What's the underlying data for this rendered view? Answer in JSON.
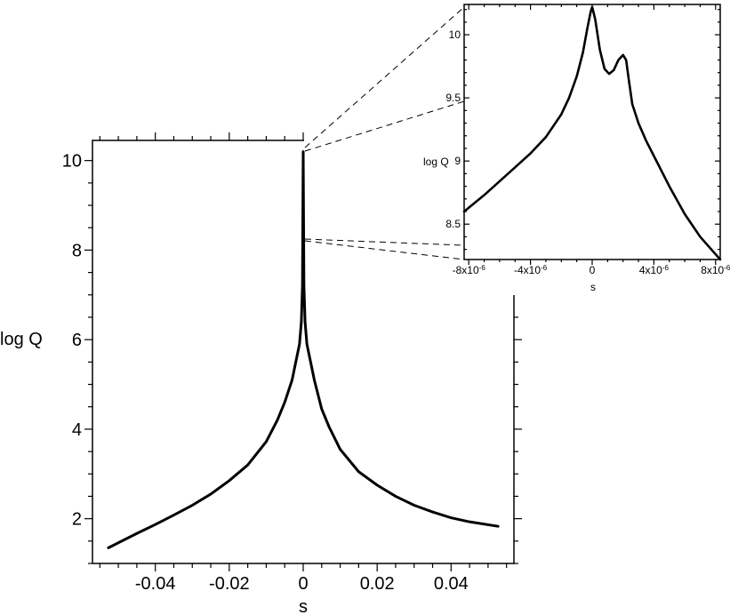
{
  "chart_data": [
    {
      "type": "line",
      "name": "main",
      "xlabel": "s",
      "ylabel": "log Q",
      "xlim": [
        -0.057,
        0.057
      ],
      "ylim": [
        1.0,
        10.45
      ],
      "x_ticks": [
        {
          "v": -0.04,
          "label": "-0.04"
        },
        {
          "v": -0.02,
          "label": "-0.02"
        },
        {
          "v": 0,
          "label": "0"
        },
        {
          "v": 0.02,
          "label": "0.02"
        },
        {
          "v": 0.04,
          "label": "0.04"
        }
      ],
      "y_ticks": [
        {
          "v": 2,
          "label": "2"
        },
        {
          "v": 4,
          "label": "4"
        },
        {
          "v": 6,
          "label": "6"
        },
        {
          "v": 8,
          "label": "8"
        },
        {
          "v": 10,
          "label": "10"
        }
      ],
      "series": [
        {
          "x": [
            -0.0527,
            -0.045,
            -0.04,
            -0.035,
            -0.03,
            -0.025,
            -0.02,
            -0.015,
            -0.01,
            -0.007,
            -0.005,
            -0.003,
            -0.002,
            -0.001,
            -0.0005,
            -0.0002,
            0,
            0.0002,
            0.0005,
            0.001,
            0.002,
            0.003,
            0.005,
            0.007,
            0.01,
            0.015,
            0.02,
            0.025,
            0.03,
            0.035,
            0.04,
            0.045,
            0.0527
          ],
          "y": [
            1.35,
            1.67,
            1.87,
            2.08,
            2.3,
            2.55,
            2.85,
            3.2,
            3.72,
            4.2,
            4.6,
            5.1,
            5.5,
            5.9,
            6.4,
            7.2,
            10.2,
            7.2,
            6.4,
            5.9,
            5.5,
            5.1,
            4.45,
            4.05,
            3.55,
            3.05,
            2.75,
            2.5,
            2.3,
            2.15,
            2.02,
            1.93,
            1.83
          ]
        }
      ]
    },
    {
      "type": "line",
      "name": "inset",
      "xlabel": "s",
      "ylabel": "log Q",
      "xlim": [
        -8.3e-06,
        8.3e-06
      ],
      "ylim": [
        8.22,
        10.24
      ],
      "x_ticks": [
        {
          "v": -8e-06,
          "label": "-8x10",
          "exp": "-6"
        },
        {
          "v": -4e-06,
          "label": "-4x10",
          "exp": "-6"
        },
        {
          "v": 0,
          "label": "0",
          "exp": ""
        },
        {
          "v": 4e-06,
          "label": "4x10",
          "exp": "-6"
        },
        {
          "v": 8e-06,
          "label": "8x10",
          "exp": "-6"
        }
      ],
      "y_ticks": [
        {
          "v": 8.5,
          "label": "8.5"
        },
        {
          "v": 9,
          "label": "9"
        },
        {
          "v": 9.5,
          "label": "9.5"
        },
        {
          "v": 10,
          "label": "10"
        }
      ],
      "series": [
        {
          "x": [
            -8.3e-06,
            -7e-06,
            -6e-06,
            -5e-06,
            -4e-06,
            -3e-06,
            -2e-06,
            -1.5e-06,
            -1e-06,
            -6e-07,
            -3e-07,
            -1e-07,
            0,
            2e-07,
            5e-07,
            8e-07,
            1.1e-06,
            1.4e-06,
            1.7e-06,
            2e-06,
            2.2e-06,
            2.4e-06,
            2.6e-06,
            3e-06,
            3.5e-06,
            4e-06,
            5e-06,
            6e-06,
            7e-06,
            8.3e-06
          ],
          "y": [
            8.6,
            8.73,
            8.84,
            8.95,
            9.06,
            9.19,
            9.37,
            9.5,
            9.67,
            9.86,
            10.06,
            10.18,
            10.22,
            10.12,
            9.88,
            9.73,
            9.69,
            9.72,
            9.8,
            9.84,
            9.8,
            9.62,
            9.45,
            9.3,
            9.16,
            9.04,
            8.8,
            8.58,
            8.4,
            8.22
          ]
        }
      ]
    }
  ]
}
